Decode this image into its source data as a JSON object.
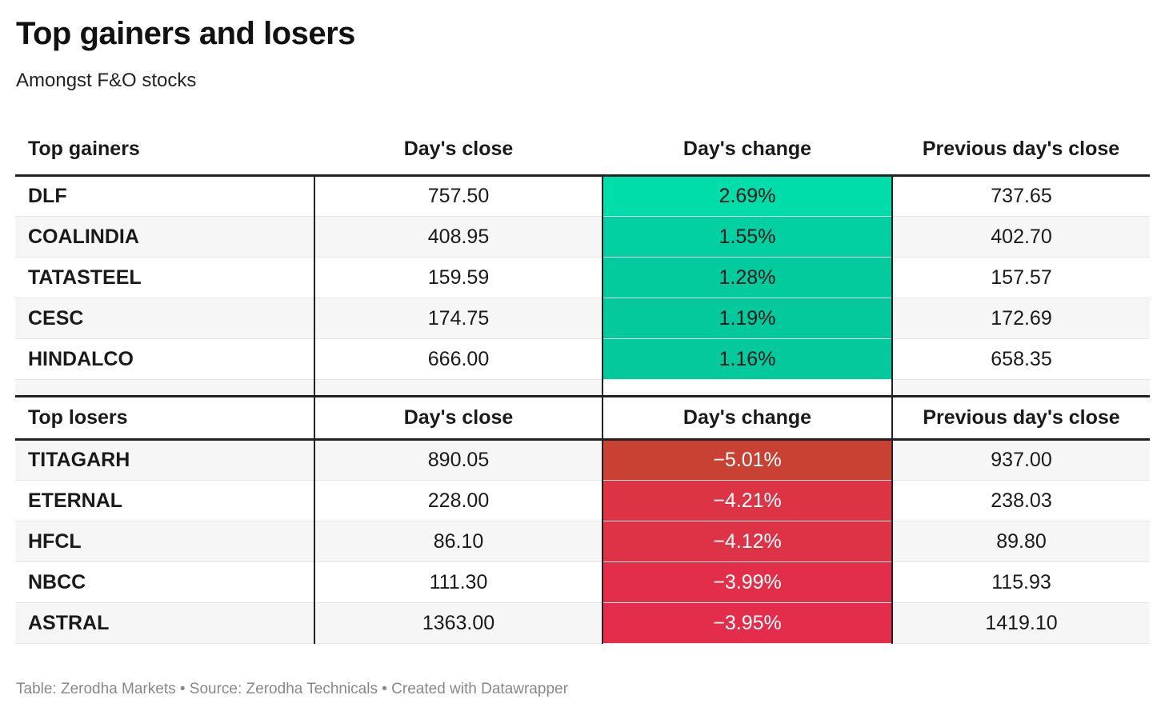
{
  "title": "Top gainers and losers",
  "subtitle": "Amongst F&O stocks",
  "colors": {
    "gain_scale": [
      "#00dba9",
      "#00c49a"
    ],
    "loss_scale": [
      "#c84130",
      "#e62e4a"
    ],
    "header_rule": "#222222",
    "row_alt": "#f6f6f6"
  },
  "gainers": {
    "headers": [
      "Top gainers",
      "Day's close",
      "Day's change",
      "Previous day's close"
    ],
    "rows": [
      {
        "name": "DLF",
        "close": "757.50",
        "change": "2.69%",
        "prev": "737.65",
        "color": "#00dcaa"
      },
      {
        "name": "COALINDIA",
        "close": "408.95",
        "change": "1.55%",
        "prev": "402.70",
        "color": "#02d0a2"
      },
      {
        "name": "TATASTEEL",
        "close": "159.59",
        "change": "1.28%",
        "prev": "157.57",
        "color": "#03cb9e"
      },
      {
        "name": "CESC",
        "close": "174.75",
        "change": "1.19%",
        "prev": "172.69",
        "color": "#03c99d"
      },
      {
        "name": "HINDALCO",
        "close": "666.00",
        "change": "1.16%",
        "prev": "658.35",
        "color": "#03c99d"
      }
    ]
  },
  "losers": {
    "headers": [
      "Top losers",
      "Day's close",
      "Day's change",
      "Previous day's close"
    ],
    "rows": [
      {
        "name": "TITAGARH",
        "close": "890.05",
        "change": "−5.01%",
        "prev": "937.00",
        "color": "#c94132"
      },
      {
        "name": "ETERNAL",
        "close": "228.00",
        "change": "−4.21%",
        "prev": "238.03",
        "color": "#dc3345"
      },
      {
        "name": "HFCL",
        "close": "86.10",
        "change": "−4.12%",
        "prev": "89.80",
        "color": "#de3246"
      },
      {
        "name": "NBCC",
        "close": "111.30",
        "change": "−3.99%",
        "prev": "115.93",
        "color": "#e22e49"
      },
      {
        "name": "ASTRAL",
        "close": "1363.00",
        "change": "−3.95%",
        "prev": "1419.10",
        "color": "#e32d4a"
      }
    ]
  },
  "footer": "Table: Zerodha Markets • Source: Zerodha Technicals • Created with Datawrapper"
}
